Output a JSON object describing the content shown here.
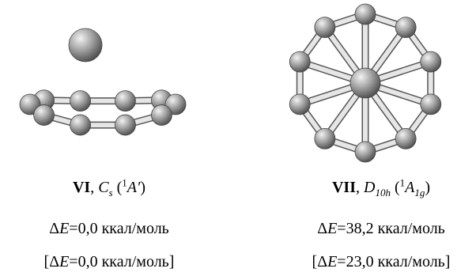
{
  "structures": [
    {
      "label": [
        "VI",
        ", ",
        "C",
        "s",
        " (",
        "1",
        "A′",
        ")"
      ],
      "energy": [
        "Δ",
        "E",
        "=0,0 ккал/моль"
      ],
      "energy_alt": [
        "[Δ",
        "E",
        "=0,0 ккал/моль]"
      ]
    },
    {
      "label": [
        "VII",
        ", ",
        "D",
        "10h",
        " (",
        "1",
        "A",
        "1g",
        ")"
      ],
      "energy": [
        "Δ",
        "E",
        "=38,2 ккал/моль"
      ],
      "energy_alt": [
        "[Δ",
        "E",
        "=23,0 ккал/моль]"
      ]
    }
  ]
}
